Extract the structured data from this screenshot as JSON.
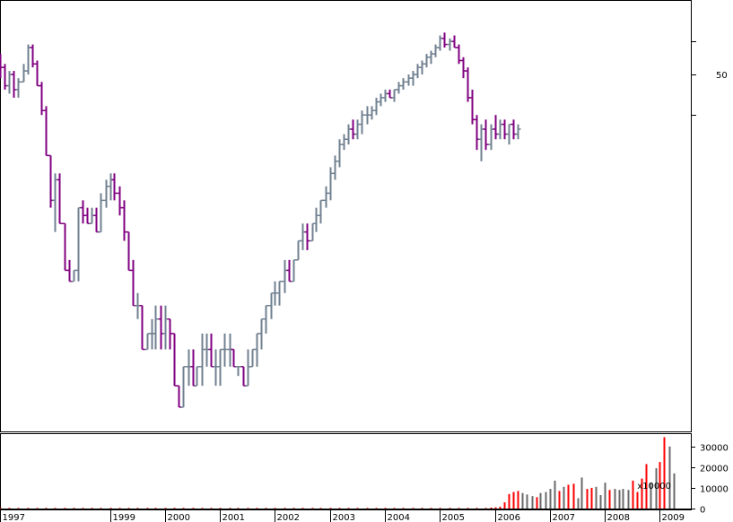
{
  "colors": {
    "up": "#708090",
    "down": "#800080",
    "vol_up": "#696969",
    "vol_down": "#ff0000",
    "frame": "#000000",
    "grid_tick": "#000000"
  },
  "chart_data": [
    {
      "type": "ohlc",
      "title": "",
      "xlabel": "",
      "ylabel": "",
      "yscale": "log",
      "ylim": [
        7,
        75
      ],
      "y_tick_labels": [
        "50"
      ],
      "y_ticks": [
        50
      ],
      "x_tick_labels": [
        "1997",
        "1999",
        "2000",
        "2001",
        "2002",
        "2003",
        "2004",
        "2005",
        "2006",
        "2007",
        "2008",
        "2009"
      ],
      "x_ticks": [
        1997.0,
        1999.0,
        2000.0,
        2001.0,
        2002.0,
        2003.0,
        2004.0,
        2005.0,
        2006.0,
        2007.0,
        2008.0,
        2009.0
      ],
      "xlim": [
        1997.0,
        2009.4
      ],
      "bars": [
        [
          1997.0,
          54,
          56,
          49,
          52
        ],
        [
          1997.08,
          52,
          53,
          46,
          47
        ],
        [
          1997.17,
          47,
          51,
          45,
          50
        ],
        [
          1997.25,
          50,
          51,
          44,
          46
        ],
        [
          1997.33,
          46,
          49,
          44,
          48
        ],
        [
          1997.42,
          48,
          53,
          48,
          51
        ],
        [
          1997.5,
          51,
          59,
          50,
          58
        ],
        [
          1997.58,
          58,
          59,
          52,
          53
        ],
        [
          1997.67,
          53,
          54,
          47,
          47
        ],
        [
          1997.75,
          47,
          48,
          40,
          41
        ],
        [
          1997.83,
          41,
          42,
          32,
          32
        ],
        [
          1997.92,
          32,
          32,
          24,
          25
        ],
        [
          1998.0,
          25,
          29,
          21,
          28
        ],
        [
          1998.08,
          28,
          29,
          22,
          22
        ],
        [
          1998.17,
          22,
          22,
          17,
          17
        ],
        [
          1998.25,
          17,
          18,
          16,
          16
        ],
        [
          1998.33,
          16,
          17,
          16,
          17
        ],
        [
          1998.42,
          17,
          24,
          16,
          24
        ],
        [
          1998.5,
          24,
          25,
          22,
          23
        ],
        [
          1998.58,
          23,
          24,
          22,
          22
        ],
        [
          1998.67,
          22,
          24,
          22,
          23
        ],
        [
          1998.75,
          23,
          24,
          21,
          21
        ],
        [
          1998.83,
          21,
          26,
          21,
          25
        ],
        [
          1998.92,
          25,
          28,
          24,
          27
        ],
        [
          1999.0,
          27,
          29,
          25,
          28
        ],
        [
          1999.08,
          28,
          29,
          25,
          26
        ],
        [
          1999.17,
          26,
          27,
          23,
          24
        ],
        [
          1999.25,
          24,
          25,
          20,
          21
        ],
        [
          1999.33,
          21,
          21,
          17,
          17
        ],
        [
          1999.42,
          17,
          18,
          14,
          14
        ],
        [
          1999.5,
          14,
          15,
          13,
          14
        ],
        [
          1999.58,
          14,
          14,
          11,
          11
        ],
        [
          1999.67,
          11,
          12,
          11,
          12
        ],
        [
          1999.75,
          12,
          13,
          11,
          12
        ],
        [
          1999.83,
          12,
          14,
          11,
          13
        ],
        [
          1999.92,
          13,
          14,
          11,
          12
        ],
        [
          2000.0,
          12,
          14,
          11,
          13
        ],
        [
          2000.08,
          13,
          13,
          11,
          12
        ],
        [
          2000.17,
          12,
          12,
          9,
          9
        ],
        [
          2000.25,
          9,
          9,
          8,
          8
        ],
        [
          2000.33,
          8,
          10,
          8,
          10
        ],
        [
          2000.42,
          10,
          11,
          9,
          10
        ],
        [
          2000.5,
          10,
          11,
          9,
          9
        ],
        [
          2000.58,
          9,
          10,
          9,
          10
        ],
        [
          2000.67,
          10,
          12,
          9,
          11
        ],
        [
          2000.75,
          11,
          12,
          10,
          11
        ],
        [
          2000.83,
          11,
          12,
          10,
          10
        ],
        [
          2000.92,
          10,
          11,
          9,
          10
        ],
        [
          2001.0,
          10,
          11,
          9,
          11
        ],
        [
          2001.08,
          11,
          12,
          10,
          11
        ],
        [
          2001.17,
          11,
          12,
          10,
          11
        ],
        [
          2001.25,
          11,
          11,
          10,
          10
        ],
        [
          2001.33,
          10,
          10,
          9.5,
          10
        ],
        [
          2001.42,
          10,
          10,
          9,
          9
        ],
        [
          2001.5,
          9,
          11,
          9,
          10
        ],
        [
          2001.58,
          10,
          11,
          10,
          11
        ],
        [
          2001.67,
          11,
          12,
          10,
          12
        ],
        [
          2001.75,
          12,
          13,
          11,
          13
        ],
        [
          2001.83,
          13,
          14,
          12,
          14
        ],
        [
          2001.92,
          14,
          15,
          13,
          15
        ],
        [
          2002.0,
          15,
          16,
          14,
          15
        ],
        [
          2002.08,
          15,
          16,
          14,
          16
        ],
        [
          2002.17,
          16,
          18,
          15,
          17
        ],
        [
          2002.25,
          17,
          18,
          16,
          16
        ],
        [
          2002.33,
          16,
          18,
          16,
          18
        ],
        [
          2002.42,
          18,
          20,
          18,
          20
        ],
        [
          2002.5,
          20,
          22,
          19,
          21
        ],
        [
          2002.58,
          21,
          22,
          19,
          20
        ],
        [
          2002.67,
          20,
          22,
          20,
          22
        ],
        [
          2002.75,
          22,
          24,
          21,
          23
        ],
        [
          2002.83,
          23,
          25,
          22,
          25
        ],
        [
          2002.92,
          25,
          27,
          24,
          26
        ],
        [
          2003.0,
          26,
          30,
          25,
          29
        ],
        [
          2003.08,
          29,
          32,
          28,
          31
        ],
        [
          2003.17,
          31,
          35,
          30,
          34
        ],
        [
          2003.25,
          34,
          36,
          33,
          35
        ],
        [
          2003.33,
          35,
          38,
          34,
          37
        ],
        [
          2003.42,
          37,
          39,
          35,
          36
        ],
        [
          2003.5,
          36,
          39,
          35,
          38
        ],
        [
          2003.58,
          38,
          41,
          36,
          40
        ],
        [
          2003.67,
          40,
          42,
          38,
          40
        ],
        [
          2003.75,
          40,
          42,
          39,
          41
        ],
        [
          2003.83,
          41,
          44,
          40,
          43
        ],
        [
          2003.92,
          43,
          45,
          42,
          44
        ],
        [
          2004.0,
          44,
          46,
          43,
          45
        ],
        [
          2004.08,
          45,
          46,
          44,
          44
        ],
        [
          2004.17,
          44,
          46,
          43,
          46
        ],
        [
          2004.25,
          46,
          48,
          45,
          47
        ],
        [
          2004.33,
          47,
          49,
          46,
          48
        ],
        [
          2004.42,
          48,
          50,
          47,
          49
        ],
        [
          2004.5,
          49,
          51,
          47,
          50
        ],
        [
          2004.58,
          50,
          53,
          49,
          52
        ],
        [
          2004.67,
          52,
          54,
          50,
          53
        ],
        [
          2004.75,
          53,
          56,
          52,
          55
        ],
        [
          2004.83,
          55,
          57,
          53,
          56
        ],
        [
          2004.92,
          56,
          59,
          55,
          58
        ],
        [
          2005.0,
          58,
          62,
          57,
          61
        ],
        [
          2005.08,
          61,
          63,
          58,
          59
        ],
        [
          2005.17,
          59,
          61,
          57,
          60
        ],
        [
          2005.25,
          60,
          62,
          58,
          58
        ],
        [
          2005.33,
          58,
          59,
          53,
          54
        ],
        [
          2005.42,
          54,
          55,
          49,
          51
        ],
        [
          2005.5,
          51,
          52,
          43,
          44
        ],
        [
          2005.58,
          44,
          46,
          38,
          39
        ],
        [
          2005.67,
          39,
          40,
          33,
          35
        ],
        [
          2005.75,
          35,
          38,
          31,
          37
        ],
        [
          2005.83,
          37,
          39,
          33,
          34
        ],
        [
          2005.92,
          34,
          38,
          33,
          37
        ],
        [
          2006.0,
          37,
          40,
          35,
          36
        ],
        [
          2006.08,
          36,
          39,
          35,
          38
        ],
        [
          2006.17,
          38,
          39,
          35,
          36
        ],
        [
          2006.25,
          36,
          38,
          34,
          38
        ],
        [
          2006.33,
          38,
          39,
          35,
          36
        ],
        [
          2006.42,
          36,
          38,
          35,
          37
        ]
      ],
      "volume": {
        "y_tick_labels": [
          "30000",
          "20000",
          "10000",
          "0"
        ],
        "y_ticks": [
          30000,
          20000,
          10000,
          0
        ],
        "unit_label": "x10000",
        "ylim": [
          0,
          36000
        ],
        "bars": [
          [
            1997.0,
            300,
            0
          ],
          [
            1997.17,
            300,
            0
          ],
          [
            1997.33,
            300,
            0
          ],
          [
            1997.5,
            300,
            0
          ],
          [
            1997.67,
            300,
            0
          ],
          [
            1997.83,
            300,
            0
          ],
          [
            1998.0,
            300,
            0
          ],
          [
            1998.17,
            300,
            0
          ],
          [
            1998.33,
            300,
            0
          ],
          [
            1998.5,
            300,
            0
          ],
          [
            1998.67,
            300,
            0
          ],
          [
            1998.83,
            300,
            0
          ],
          [
            1999.0,
            300,
            0
          ],
          [
            1999.17,
            300,
            0
          ],
          [
            1999.33,
            300,
            0
          ],
          [
            1999.5,
            300,
            0
          ],
          [
            1999.67,
            300,
            0
          ],
          [
            1999.83,
            300,
            0
          ],
          [
            2000.0,
            300,
            0
          ],
          [
            2000.17,
            300,
            0
          ],
          [
            2000.33,
            300,
            0
          ],
          [
            2000.5,
            300,
            0
          ],
          [
            2000.67,
            300,
            0
          ],
          [
            2000.83,
            300,
            0
          ],
          [
            2001.0,
            300,
            0
          ],
          [
            2001.17,
            300,
            0
          ],
          [
            2001.33,
            300,
            0
          ],
          [
            2001.5,
            300,
            0
          ],
          [
            2001.67,
            300,
            0
          ],
          [
            2001.83,
            300,
            0
          ],
          [
            2002.0,
            300,
            0
          ],
          [
            2002.17,
            300,
            0
          ],
          [
            2002.33,
            300,
            0
          ],
          [
            2002.5,
            300,
            0
          ],
          [
            2002.67,
            300,
            0
          ],
          [
            2002.83,
            300,
            0
          ],
          [
            2003.0,
            300,
            0
          ],
          [
            2003.17,
            300,
            0
          ],
          [
            2003.33,
            300,
            0
          ],
          [
            2003.5,
            300,
            0
          ],
          [
            2003.67,
            300,
            0
          ],
          [
            2003.83,
            300,
            0
          ],
          [
            2004.0,
            300,
            0
          ],
          [
            2004.17,
            300,
            0
          ],
          [
            2004.33,
            300,
            0
          ],
          [
            2004.5,
            300,
            0
          ],
          [
            2004.67,
            300,
            0
          ],
          [
            2004.83,
            300,
            0
          ],
          [
            2005.0,
            300,
            0
          ],
          [
            2005.17,
            300,
            0
          ],
          [
            2005.33,
            300,
            0
          ],
          [
            2005.5,
            300,
            0
          ],
          [
            2005.67,
            300,
            0
          ],
          [
            2005.83,
            300,
            0
          ],
          [
            2005.92,
            500,
            0
          ],
          [
            2006.0,
            600,
            0
          ],
          [
            2006.08,
            900,
            0
          ],
          [
            2006.17,
            3000,
            0
          ],
          [
            2006.25,
            7000,
            0
          ],
          [
            2006.33,
            8000,
            0
          ],
          [
            2006.42,
            8500,
            0
          ],
          [
            2006.5,
            7500,
            1
          ],
          [
            2006.58,
            6800,
            1
          ],
          [
            2006.67,
            6000,
            1
          ],
          [
            2006.75,
            5500,
            0
          ],
          [
            2006.83,
            7500,
            1
          ],
          [
            2006.92,
            8000,
            1
          ],
          [
            2007.0,
            9500,
            1
          ],
          [
            2007.08,
            13500,
            1
          ],
          [
            2007.17,
            8500,
            0
          ],
          [
            2007.25,
            10500,
            1
          ],
          [
            2007.33,
            11500,
            0
          ],
          [
            2007.42,
            12000,
            0
          ],
          [
            2007.5,
            5000,
            1
          ],
          [
            2007.58,
            15000,
            1
          ],
          [
            2007.67,
            9500,
            0
          ],
          [
            2007.75,
            10000,
            0
          ],
          [
            2007.83,
            10500,
            1
          ],
          [
            2007.92,
            6500,
            1
          ],
          [
            2008.0,
            12500,
            1
          ],
          [
            2008.08,
            9000,
            0
          ],
          [
            2008.17,
            9500,
            1
          ],
          [
            2008.25,
            9000,
            1
          ],
          [
            2008.33,
            9500,
            1
          ],
          [
            2008.42,
            9000,
            1
          ],
          [
            2008.5,
            13500,
            0
          ],
          [
            2008.58,
            8000,
            0
          ],
          [
            2008.67,
            14500,
            0
          ],
          [
            2008.75,
            21500,
            0
          ],
          [
            2008.83,
            12500,
            1
          ],
          [
            2008.92,
            19500,
            1
          ],
          [
            2009.0,
            22500,
            0
          ],
          [
            2009.08,
            34500,
            0
          ],
          [
            2009.17,
            30000,
            1
          ],
          [
            2009.25,
            17000,
            1
          ]
        ]
      }
    }
  ]
}
